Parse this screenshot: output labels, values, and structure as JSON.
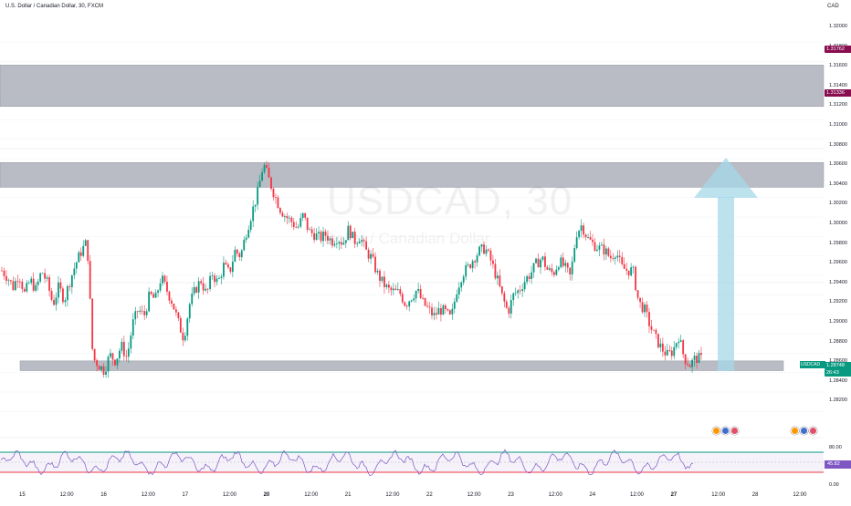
{
  "header": {
    "title": "U.S. Dollar / Canadian Dollar, 30, FXCM",
    "currency": "CAD"
  },
  "watermark": {
    "symbol": "USDCAD, 30",
    "name": "Dollar / Canadian Dollar"
  },
  "price_axis": {
    "labels": [
      "1.32000",
      "1.31800",
      "1.31600",
      "1.31400",
      "1.31200",
      "1.31000",
      "1.30800",
      "1.30600",
      "1.30400",
      "1.30200",
      "1.30000",
      "1.29800",
      "1.29600",
      "1.29400",
      "1.29200",
      "1.29000",
      "1.28800",
      "1.28600",
      "1.28400",
      "1.28200"
    ]
  },
  "price_tags": {
    "upper_zone_top": "1.31762",
    "upper_zone_bottom": "1.31336",
    "symbol": "USDCAD",
    "last_price": "1.28748",
    "countdown": "26:43"
  },
  "time_axis": {
    "labels": [
      {
        "text": "15",
        "bold": false
      },
      {
        "text": "12:00",
        "bold": false
      },
      {
        "text": "16",
        "bold": false
      },
      {
        "text": "12:00",
        "bold": false
      },
      {
        "text": "17",
        "bold": false
      },
      {
        "text": "12:00",
        "bold": false
      },
      {
        "text": "20",
        "bold": true
      },
      {
        "text": "12:00",
        "bold": false
      },
      {
        "text": "21",
        "bold": false
      },
      {
        "text": "12:00",
        "bold": false
      },
      {
        "text": "22",
        "bold": false
      },
      {
        "text": "12:00",
        "bold": false
      },
      {
        "text": "23",
        "bold": false
      },
      {
        "text": "12:00",
        "bold": false
      },
      {
        "text": "24",
        "bold": false
      },
      {
        "text": "12:00",
        "bold": false
      },
      {
        "text": "27",
        "bold": true
      },
      {
        "text": "12:00",
        "bold": false
      },
      {
        "text": "28",
        "bold": false
      },
      {
        "text": "12:00",
        "bold": false
      }
    ]
  },
  "rsi_axis": {
    "labels": [
      "80.00",
      "0.00"
    ],
    "value": "45.82"
  },
  "colors": {
    "up": "#089981",
    "down": "#f23645",
    "zone": "#b2b5be",
    "arrow": "#a5d8e8",
    "rsi": "#7e57c2",
    "rsi_upper": "#089981",
    "rsi_lower": "#f23645"
  },
  "chart_data": {
    "type": "candlestick",
    "symbol": "USDCAD",
    "interval": "30",
    "ylim": [
      1.281,
      1.3215
    ],
    "zones": [
      {
        "from": 1.31336,
        "to": 1.31762
      },
      {
        "from": 1.30505,
        "to": 1.3076
      },
      {
        "from": 1.2862,
        "to": 1.2872
      }
    ],
    "close_path": [
      1.2965,
      1.2958,
      1.2948,
      1.2962,
      1.2941,
      1.2955,
      1.2945,
      1.2965,
      1.2952,
      1.293,
      1.2948,
      1.2935,
      1.2955,
      1.2972,
      1.2985,
      1.2995,
      1.2875,
      1.2868,
      1.2862,
      1.2878,
      1.2872,
      1.2888,
      1.2875,
      1.291,
      1.2925,
      1.2918,
      1.294,
      1.2935,
      1.2958,
      1.2945,
      1.2932,
      1.2912,
      1.2895,
      1.293,
      1.2945,
      1.2955,
      1.294,
      1.2962,
      1.2952,
      1.297,
      1.2962,
      1.2985,
      1.298,
      1.3005,
      1.3025,
      1.3045,
      1.3075,
      1.3058,
      1.3042,
      1.3028,
      1.302,
      1.3015,
      1.3008,
      1.3022,
      1.3005,
      1.3002,
      1.2998,
      1.3002,
      1.2995,
      1.2999,
      1.2993,
      1.3008,
      1.2995,
      1.3,
      1.2985,
      1.2978,
      1.2962,
      1.2952,
      1.2945,
      1.2943,
      1.2942,
      1.293,
      1.2938,
      1.2945,
      1.2932,
      1.2925,
      1.2918,
      1.2925,
      1.2922,
      1.2915,
      1.2945,
      1.2962,
      1.2968,
      1.2978,
      1.2985,
      1.2988,
      1.2975,
      1.2958,
      1.2938,
      1.2922,
      1.294,
      1.2945,
      1.2955,
      1.2962,
      1.2972,
      1.2978,
      1.2965,
      1.2962,
      1.2975,
      1.2968,
      1.2958,
      1.3003,
      1.3012,
      1.2998,
      1.2992,
      1.2988,
      1.2986,
      1.2978,
      1.2985,
      1.2968,
      1.2965,
      1.2965,
      1.2932,
      1.2925,
      1.2908,
      1.2895,
      1.2885,
      1.2878,
      1.2882,
      1.2898,
      1.2875,
      1.2868,
      1.2875,
      1.2874
    ]
  },
  "rsi_data": {
    "type": "line",
    "ylim": [
      0,
      100
    ],
    "levels": [
      70,
      30
    ],
    "current": 45.82
  }
}
